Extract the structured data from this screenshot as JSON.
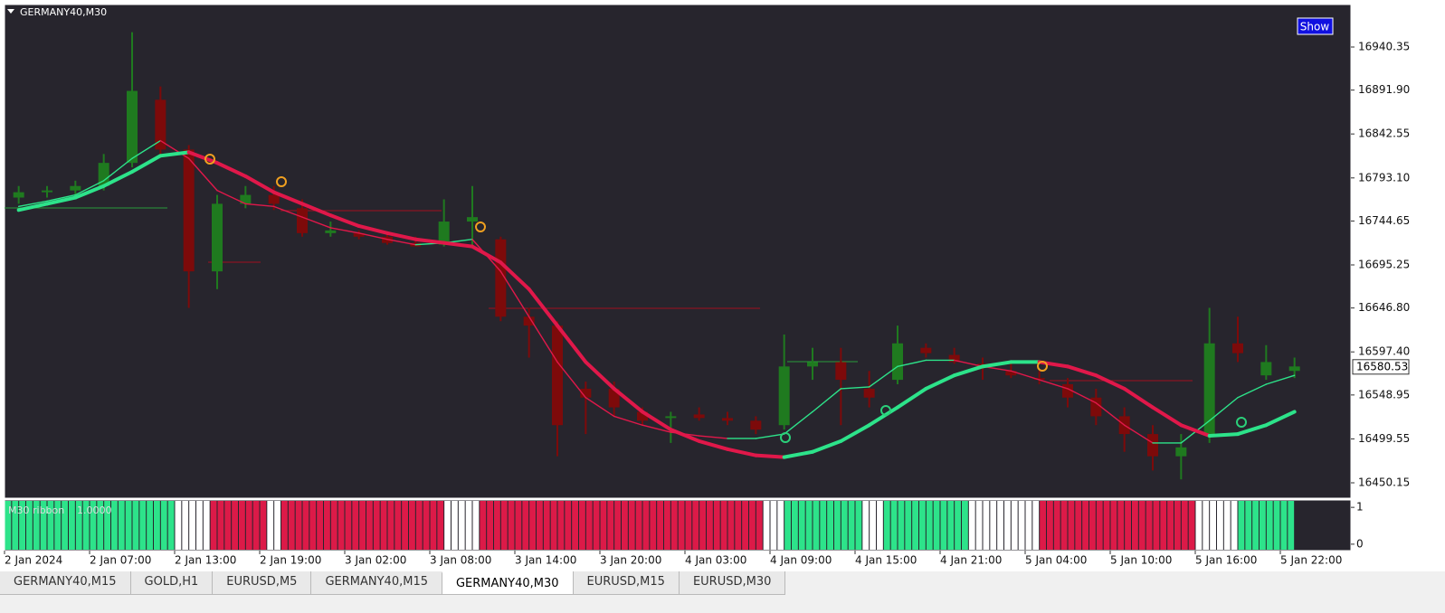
{
  "chart_data": {
    "type": "candlestick",
    "title": "GERMANY40,M30",
    "button": "Show",
    "xtick_labels": [
      "2 Jan 2024",
      "2 Jan 07:00",
      "2 Jan 13:00",
      "2 Jan 19:00",
      "3 Jan 02:00",
      "3 Jan 08:00",
      "3 Jan 14:00",
      "3 Jan 20:00",
      "4 Jan 03:00",
      "4 Jan 09:00",
      "4 Jan 15:00",
      "4 Jan 21:00",
      "5 Jan 04:00",
      "5 Jan 10:00",
      "5 Jan 16:00",
      "5 Jan 22:00"
    ],
    "open": [
      16771,
      16777,
      16779,
      16784,
      16810,
      16881,
      16825,
      16688,
      16764,
      16774,
      16759,
      16731,
      16731,
      16727,
      16720,
      16718,
      16744,
      16724,
      16637,
      16627,
      16556,
      16556,
      16530,
      16523,
      16527,
      16523,
      16520,
      16515,
      16581,
      16586,
      16556,
      16566,
      16602,
      16594,
      16584,
      16576,
      16568,
      16561,
      16546,
      16525,
      16505,
      16480,
      16505,
      16607,
      16571,
      16576
    ],
    "high": [
      16784,
      16784,
      16790,
      16820,
      16957,
      16896,
      16830,
      16774,
      16784,
      16784,
      16769,
      16744,
      16734,
      16731,
      16727,
      16769,
      16784,
      16727,
      16647,
      16632,
      16564,
      16564,
      16535,
      16530,
      16535,
      16530,
      16525,
      16617,
      16602,
      16602,
      16576,
      16627,
      16607,
      16602,
      16591,
      16584,
      16576,
      16568,
      16556,
      16535,
      16515,
      16505,
      16647,
      16637,
      16605,
      16591
    ],
    "low": [
      16764,
      16771,
      16774,
      16779,
      16805,
      16820,
      16647,
      16668,
      16759,
      16757,
      16727,
      16727,
      16724,
      16718,
      16716,
      16716,
      16718,
      16632,
      16591,
      16480,
      16505,
      16525,
      16515,
      16495,
      16520,
      16515,
      16505,
      16510,
      16566,
      16515,
      16535,
      16561,
      16591,
      16584,
      16566,
      16568,
      16561,
      16535,
      16515,
      16485,
      16464,
      16454,
      16495,
      16586,
      16566,
      16568
    ],
    "close": [
      16777,
      16779,
      16784,
      16810,
      16891,
      16825,
      16688,
      16764,
      16774,
      16764,
      16731,
      16734,
      16727,
      16720,
      16716,
      16744,
      16749,
      16637,
      16627,
      16515,
      16546,
      16535,
      16520,
      16525,
      16523,
      16520,
      16510,
      16581,
      16586,
      16566,
      16546,
      16607,
      16596,
      16586,
      16581,
      16571,
      16566,
      16546,
      16525,
      16505,
      16480,
      16490,
      16607,
      16596,
      16586,
      16581
    ],
    "up_color": "#1f7a1f",
    "down_color": "#7d0a0a",
    "line_up_color": "#2de38a",
    "line_down_color": "#e0184a",
    "lines": [
      {
        "values": [
          16761,
          16767,
          16774,
          16790,
          16815,
          16835,
          16815,
          16779,
          16764,
          16761,
          16749,
          16737,
          16731,
          16724,
          16718,
          16720,
          16724,
          16688,
          16637,
          16586,
          16546,
          16525,
          16515,
          16507,
          16503,
          16500,
          16500,
          16505,
          16530,
          16556,
          16558,
          16581,
          16588,
          16588,
          16581,
          16576,
          16566,
          16556,
          16540,
          16515,
          16495,
          16495,
          16520,
          16546,
          16561,
          16571
        ]
      },
      {
        "values": [
          16757,
          16764,
          16771,
          16784,
          16800,
          16818,
          16822,
          16810,
          16795,
          16777,
          16764,
          16751,
          16739,
          16731,
          16724,
          16720,
          16716,
          16698,
          16668,
          16627,
          16586,
          16556,
          16530,
          16510,
          16497,
          16488,
          16481,
          16479,
          16485,
          16497,
          16515,
          16535,
          16556,
          16571,
          16581,
          16586,
          16586,
          16581,
          16571,
          16556,
          16535,
          16515,
          16503,
          16505,
          16515,
          16530
        ]
      }
    ],
    "ylim": [
      16432.86,
      16988.15
    ],
    "yticks": [
      {
        "value": 16940.35,
        "label": "16940.35"
      },
      {
        "value": 16891.9,
        "label": "16891.90"
      },
      {
        "value": 16842.55,
        "label": "16842.55"
      },
      {
        "value": 16793.1,
        "label": "16793.10"
      },
      {
        "value": 16744.65,
        "label": "16744.65"
      },
      {
        "value": 16695.25,
        "label": "16695.25"
      },
      {
        "value": 16646.8,
        "label": "16646.80"
      },
      {
        "value": 16597.4,
        "label": "16597.40"
      },
      {
        "value": 16548.95,
        "label": "16548.95"
      },
      {
        "value": 16499.55,
        "label": "16499.55"
      },
      {
        "value": 16450.15,
        "label": "16450.15"
      }
    ],
    "current_price": 16580.53
  },
  "ribbon": {
    "name": "M30 ribbon",
    "value": "1.0000",
    "yticks": [
      1,
      0
    ],
    "segments": [
      {
        "color": "#2de38a",
        "bars": 24
      },
      {
        "color": "#ffffff",
        "bars": 5
      },
      {
        "color": "#dc1a48",
        "bars": 8
      },
      {
        "color": "#ffffff",
        "bars": 2
      },
      {
        "color": "#dc1a48",
        "bars": 23
      },
      {
        "color": "#ffffff",
        "bars": 5
      },
      {
        "color": "#dc1a48",
        "bars": 40
      },
      {
        "color": "#ffffff",
        "bars": 3
      },
      {
        "color": "#2de38a",
        "bars": 11
      },
      {
        "color": "#ffffff",
        "bars": 3
      },
      {
        "color": "#2de38a",
        "bars": 12
      },
      {
        "color": "#ffffff",
        "bars": 10
      },
      {
        "color": "#dc1a48",
        "bars": 22
      },
      {
        "color": "#ffffff",
        "bars": 6
      },
      {
        "color": "#2de38a",
        "bars": 8
      }
    ]
  },
  "tabs": [
    {
      "label": "GERMANY40,M15"
    },
    {
      "label": "GOLD,H1"
    },
    {
      "label": "EURUSD,M5"
    },
    {
      "label": "GERMANY40,M15"
    },
    {
      "label": "GERMANY40,M30",
      "active": true
    },
    {
      "label": "EURUSD,M15"
    },
    {
      "label": "EURUSD,M30"
    }
  ]
}
